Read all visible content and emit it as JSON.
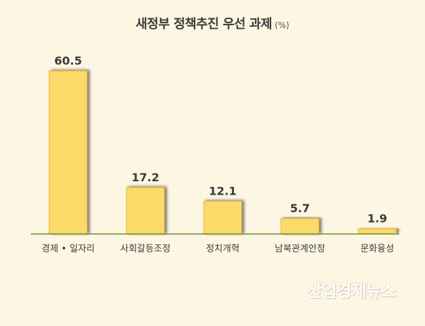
{
  "title": "새정부 정책추진 우선 과제",
  "unit": "(%)",
  "watermark": "산업경제뉴스",
  "colors": {
    "background": "#fdf6e3",
    "bar": "#fcd967",
    "bar_stroke": "#e6bd3c",
    "axis": "#6b8e23",
    "text": "#3b3b3b"
  },
  "chart_data": {
    "type": "bar",
    "title": "새정부 정책추진 우선 과제",
    "categories": [
      "경제 • 일자리",
      "사회갈등조정",
      "정치개혁",
      "남북관계안정",
      "문화융성"
    ],
    "values": [
      60.5,
      17.2,
      12.1,
      5.7,
      1.9
    ],
    "data_labels": [
      "60.5",
      "17.2",
      "12.1",
      "5.7",
      "1.9"
    ],
    "ylim": [
      0,
      60.5
    ],
    "grid": false,
    "legend": "none"
  }
}
